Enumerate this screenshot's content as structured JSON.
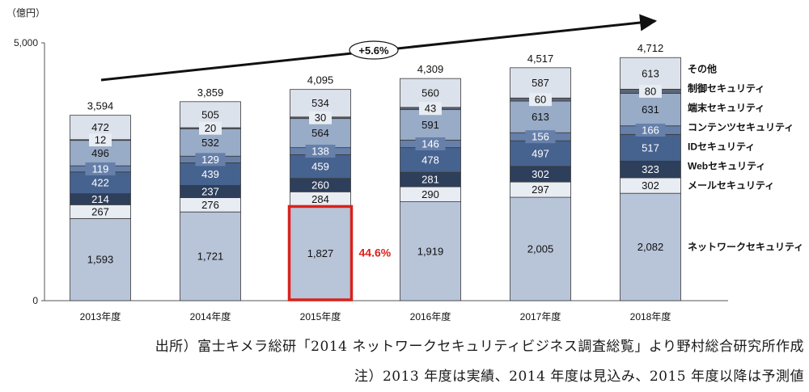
{
  "chart_data": {
    "type": "bar",
    "stacked": true,
    "unit_label": "（億円）",
    "ylim": [
      0,
      5000
    ],
    "y_ticks": [
      0,
      5000
    ],
    "y_tick_labels": [
      "0",
      "5,000"
    ],
    "categories": [
      "2013年度",
      "2014年度",
      "2015年度",
      "2016年度",
      "2017年度",
      "2018年度"
    ],
    "totals": [
      "3,594",
      "3,859",
      "4,095",
      "4,309",
      "4,517",
      "4,712"
    ],
    "cagr_label": "+5.6%",
    "highlight": {
      "category_index": 2,
      "series_index": 0,
      "label": "44.6%",
      "color": "#d9221c"
    },
    "series": [
      {
        "name": "ネットワークセキュリティ",
        "color": "#b8c4d8",
        "values": [
          1593,
          1721,
          1827,
          1919,
          2005,
          2082
        ],
        "labels": [
          "1,593",
          "1,721",
          "1,827",
          "1,919",
          "2,005",
          "2,082"
        ]
      },
      {
        "name": "メールセキュリティ",
        "color": "#e8ecf3",
        "values": [
          267,
          276,
          284,
          290,
          297,
          302
        ],
        "labels": [
          "267",
          "276",
          "284",
          "290",
          "297",
          "302"
        ]
      },
      {
        "name": "Webセキュリティ",
        "color": "#2e3f5c",
        "values": [
          214,
          237,
          260,
          281,
          302,
          323
        ],
        "labels": [
          "214",
          "237",
          "260",
          "281",
          "302",
          "323"
        ]
      },
      {
        "name": "IDセキュリティ",
        "color": "#46628f",
        "values": [
          422,
          439,
          459,
          478,
          497,
          517
        ],
        "labels": [
          "422",
          "439",
          "459",
          "478",
          "497",
          "517"
        ]
      },
      {
        "name": "コンテンツセキュリティ",
        "color": "#6680aa",
        "values": [
          119,
          129,
          138,
          146,
          156,
          166
        ],
        "labels": [
          "119",
          "129",
          "138",
          "146",
          "156",
          "166"
        ]
      },
      {
        "name": "端末セキュリティ",
        "color": "#98abc7",
        "values": [
          496,
          532,
          564,
          591,
          613,
          631
        ],
        "labels": [
          "496",
          "532",
          "564",
          "591",
          "613",
          "631"
        ]
      },
      {
        "name": "制御セキュリティ",
        "color": "#5c6675",
        "values": [
          12,
          20,
          30,
          43,
          60,
          80
        ],
        "labels": [
          "12",
          "20",
          "30",
          "43",
          "60",
          "80"
        ]
      },
      {
        "name": "その他",
        "color": "#dce2ec",
        "values": [
          472,
          505,
          534,
          560,
          587,
          613
        ],
        "labels": [
          "472",
          "505",
          "534",
          "560",
          "587",
          "613"
        ]
      }
    ]
  },
  "notes": {
    "source": "出所）富士キメラ総研「2014 ネットワークセキュリティビジネス調査総覧」より野村総合研究所作成",
    "footnote": "注）2013 年度は実績、2014 年度は見込み、2015 年度以降は予測値"
  }
}
